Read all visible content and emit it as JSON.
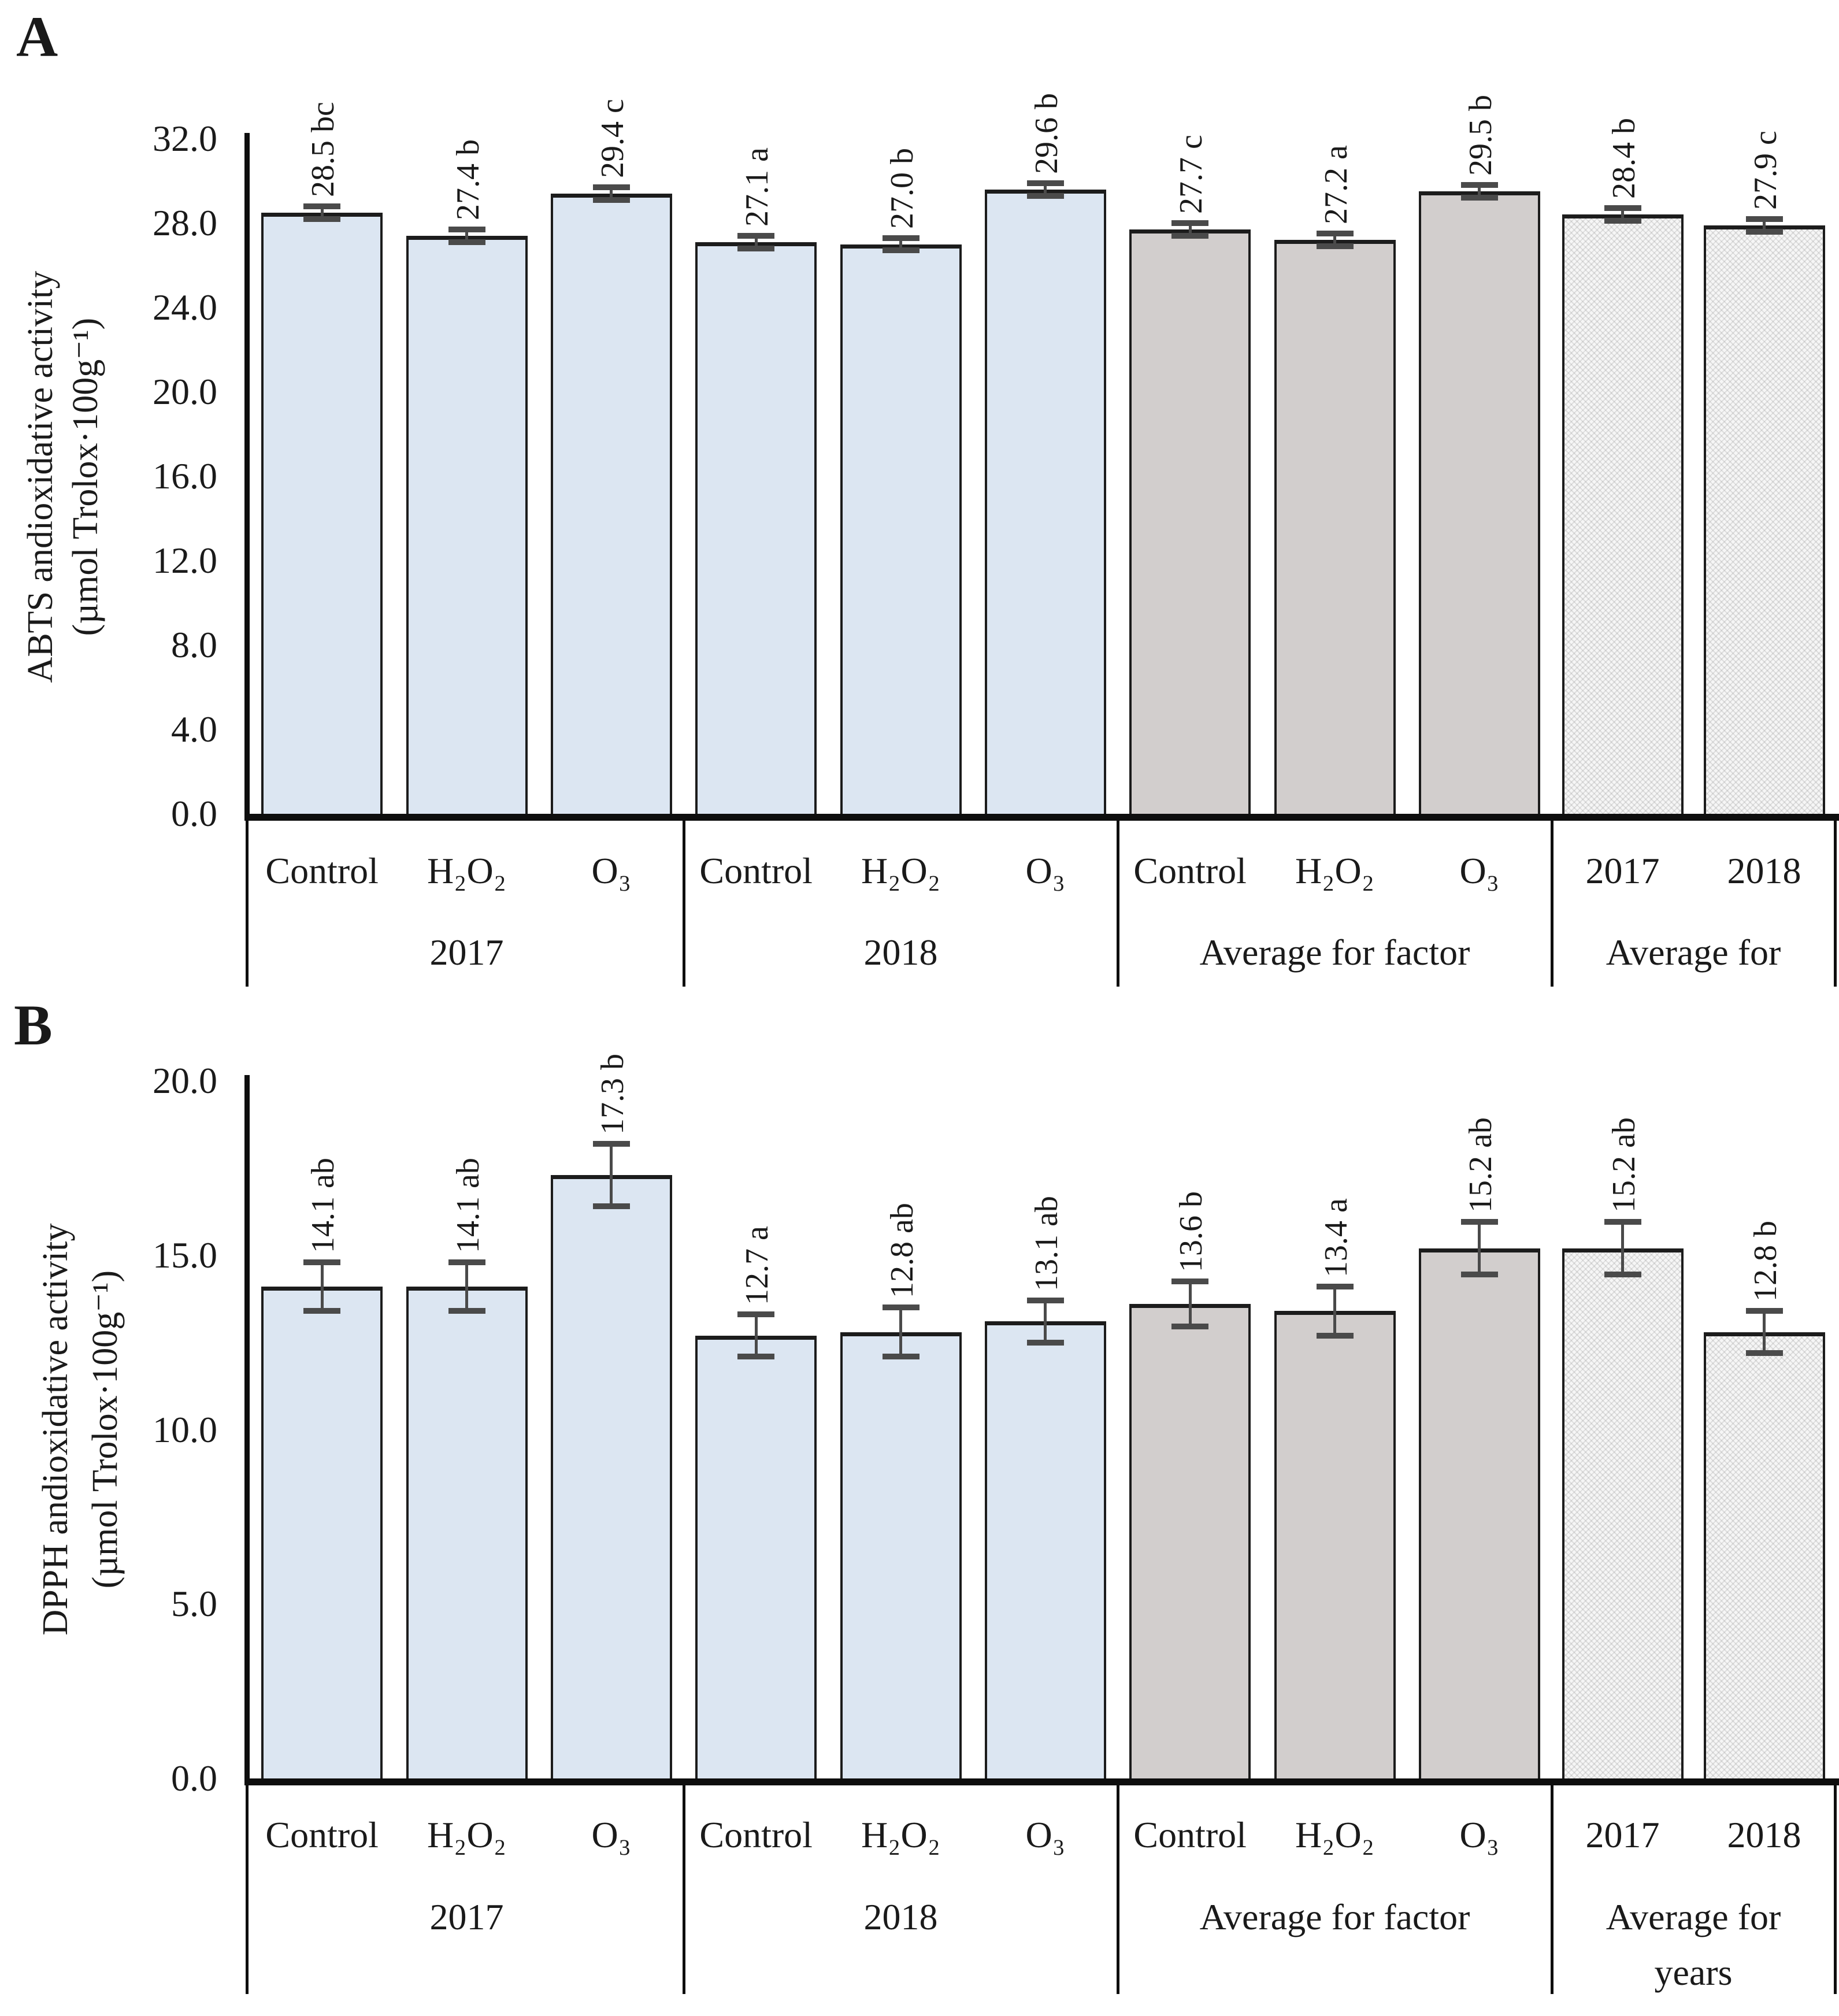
{
  "figure_colors": {
    "bar_blue": "#dce6f2",
    "bar_gray": "#d2cecd",
    "bar_pattern_base": "#f6f6f6",
    "bar_border": "#1c1c1c",
    "error_bar": "#4a4a4a",
    "axis": "#0e0e0e",
    "text": "#1a1a1a"
  },
  "chart_data": [
    {
      "type": "bar",
      "panel_letter": "A",
      "ylabel_line1": "ABTS andioxidative activity",
      "ylabel_line2": "(µmol Trolox·100g⁻¹)",
      "ylim": [
        0,
        32
      ],
      "ytick_step": 4,
      "ytick_labels": [
        "0.0",
        "4.0",
        "8.0",
        "12.0",
        "16.0",
        "20.0",
        "24.0",
        "28.0",
        "32.0"
      ],
      "grid": false,
      "legend": "none",
      "groups": [
        {
          "label_lines": [
            "2017"
          ],
          "style": "blue",
          "bars": [
            {
              "category": "Control",
              "value": 28.5,
              "error": 0.3,
              "annotation": "28.5 bc"
            },
            {
              "category": "H₂O₂",
              "value": 27.4,
              "error": 0.3,
              "annotation": "27.4 b"
            },
            {
              "category": "O₃",
              "value": 29.4,
              "error": 0.3,
              "annotation": "29.4 c"
            }
          ]
        },
        {
          "label_lines": [
            "2018"
          ],
          "style": "blue",
          "bars": [
            {
              "category": "Control",
              "value": 27.1,
              "error": 0.3,
              "annotation": "27.1 a"
            },
            {
              "category": "H₂O₂",
              "value": 27.0,
              "error": 0.3,
              "annotation": "27.0 b"
            },
            {
              "category": "O₃",
              "value": 29.6,
              "error": 0.3,
              "annotation": "29.6 b"
            }
          ]
        },
        {
          "label_lines": [
            "Average for factor"
          ],
          "style": "gray",
          "bars": [
            {
              "category": "Control",
              "value": 27.7,
              "error": 0.3,
              "annotation": "27.7 c"
            },
            {
              "category": "H₂O₂",
              "value": 27.2,
              "error": 0.3,
              "annotation": "27.2 a"
            },
            {
              "category": "O₃",
              "value": 29.5,
              "error": 0.3,
              "annotation": "29.5 b"
            }
          ]
        },
        {
          "label_lines": [
            "Average for"
          ],
          "style": "pattern",
          "bars": [
            {
              "category": "2017",
              "value": 28.4,
              "error": 0.3,
              "annotation": "28.4 b"
            },
            {
              "category": "2018",
              "value": 27.9,
              "error": 0.3,
              "annotation": "27.9 c"
            }
          ]
        }
      ]
    },
    {
      "type": "bar",
      "panel_letter": "B",
      "ylabel_line1": "DPPH andioxidative activity",
      "ylabel_line2": "(µmol Trolox·100g⁻¹)",
      "ylim": [
        0,
        20
      ],
      "ytick_step": 5,
      "ytick_labels": [
        "0.0",
        "5.0",
        "10.0",
        "15.0",
        "20.0"
      ],
      "grid": false,
      "legend": "none",
      "groups": [
        {
          "label_lines": [
            "2017"
          ],
          "style": "blue",
          "bars": [
            {
              "category": "Control",
              "value": 14.1,
              "error": 0.7,
              "annotation": "14.1 ab"
            },
            {
              "category": "H₂O₂",
              "value": 14.1,
              "error": 0.7,
              "annotation": "14.1 ab"
            },
            {
              "category": "O₃",
              "value": 17.3,
              "error": 0.9,
              "annotation": "17.3 b"
            }
          ]
        },
        {
          "label_lines": [
            "2018"
          ],
          "style": "blue",
          "bars": [
            {
              "category": "Control",
              "value": 12.7,
              "error": 0.6,
              "annotation": "12.7 a"
            },
            {
              "category": "H₂O₂",
              "value": 12.8,
              "error": 0.7,
              "annotation": "12.8 ab"
            },
            {
              "category": "O₃",
              "value": 13.1,
              "error": 0.6,
              "annotation": "13.1 ab"
            }
          ]
        },
        {
          "label_lines": [
            "Average for factor"
          ],
          "style": "gray",
          "bars": [
            {
              "category": "Control",
              "value": 13.6,
              "error": 0.65,
              "annotation": "13.6 b"
            },
            {
              "category": "H₂O₂",
              "value": 13.4,
              "error": 0.7,
              "annotation": "13.4 a"
            },
            {
              "category": "O₃",
              "value": 15.2,
              "error": 0.75,
              "annotation": "15.2 ab"
            }
          ]
        },
        {
          "label_lines": [
            "Average for",
            "years"
          ],
          "style": "pattern",
          "bars": [
            {
              "category": "2017",
              "value": 15.2,
              "error": 0.75,
              "annotation": "15.2 ab"
            },
            {
              "category": "2018",
              "value": 12.8,
              "error": 0.6,
              "annotation": "12.8 b"
            }
          ]
        }
      ]
    }
  ]
}
